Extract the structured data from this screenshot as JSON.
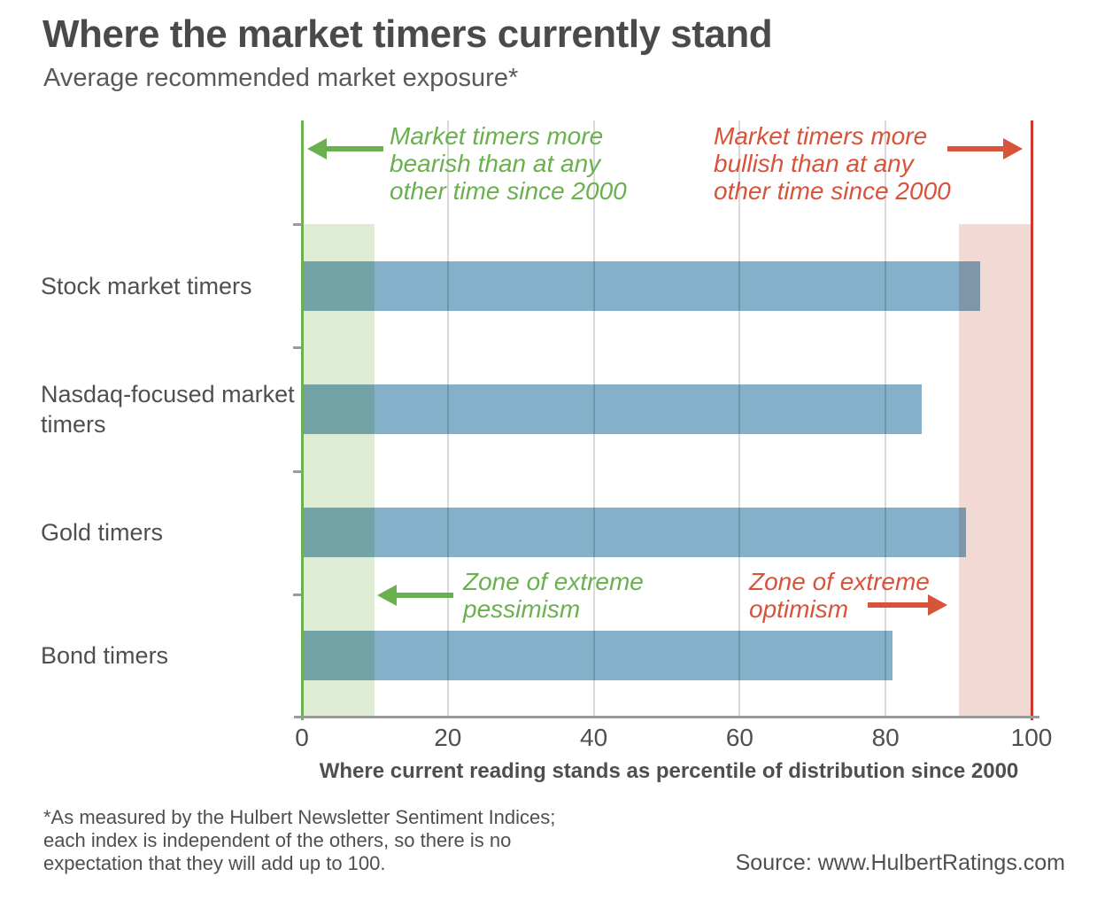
{
  "header": {
    "title": "Where the market timers currently stand",
    "subtitle": "Average recommended market exposure*"
  },
  "chart_data": {
    "type": "bar",
    "orientation": "horizontal",
    "title": "Where the market timers currently stand",
    "subtitle": "Average recommended market exposure*",
    "categories": [
      "Stock market timers",
      "Nasdaq-focused market timers",
      "Gold timers",
      "Bond timers"
    ],
    "values": [
      93,
      85,
      91,
      81
    ],
    "xlabel": "Where current reading stands as percentile of distribution since 2000",
    "ylabel": "",
    "xlim": [
      0,
      100
    ],
    "xticks": [
      0,
      20,
      40,
      60,
      80,
      100
    ],
    "grid": true,
    "zones": [
      {
        "name": "extreme-pessimism-zone",
        "from": 0,
        "to": 10,
        "color": "#ddecd2"
      },
      {
        "name": "extreme-optimism-zone",
        "from": 90,
        "to": 100,
        "color": "#f2d9d3"
      }
    ],
    "edge_lines": [
      {
        "name": "bearish-extreme-line",
        "at": 0,
        "color": "#6cb14f"
      },
      {
        "name": "bullish-extreme-line",
        "at": 100,
        "color": "#ce372a"
      }
    ],
    "annotations": {
      "top_left": {
        "lines": [
          "Market timers more",
          "bearish than at any",
          "other time since 2000"
        ],
        "arrow": "left",
        "color": "#6ab04e"
      },
      "top_right": {
        "lines": [
          "Market timers more",
          "bullish than at any",
          "other time since 2000"
        ],
        "arrow": "right",
        "color": "#d7533a"
      },
      "mid_left": {
        "lines": [
          "Zone of extreme",
          "pessimism"
        ],
        "arrow": "left",
        "color": "#6ab04e"
      },
      "mid_right": {
        "lines": [
          "Zone of extreme",
          "optimism"
        ],
        "arrow": "right",
        "color": "#d7533a"
      }
    }
  },
  "colors": {
    "bar": "#85b0ca",
    "green": "#6ab04e",
    "green_line": "#6cb14f",
    "red": "#d7533a",
    "red_line": "#ce372a",
    "gridline": "#d9d9d9",
    "axis": "#9b9b9b",
    "text": "#4f4f4f"
  },
  "footer": {
    "footnote_lines": [
      "*As measured by the Hulbert Newsletter Sentiment Indices;",
      "each index is independent of the others, so there is no",
      "expectation that they will add up to 100."
    ],
    "source": "Source: www.HulbertRatings.com"
  }
}
